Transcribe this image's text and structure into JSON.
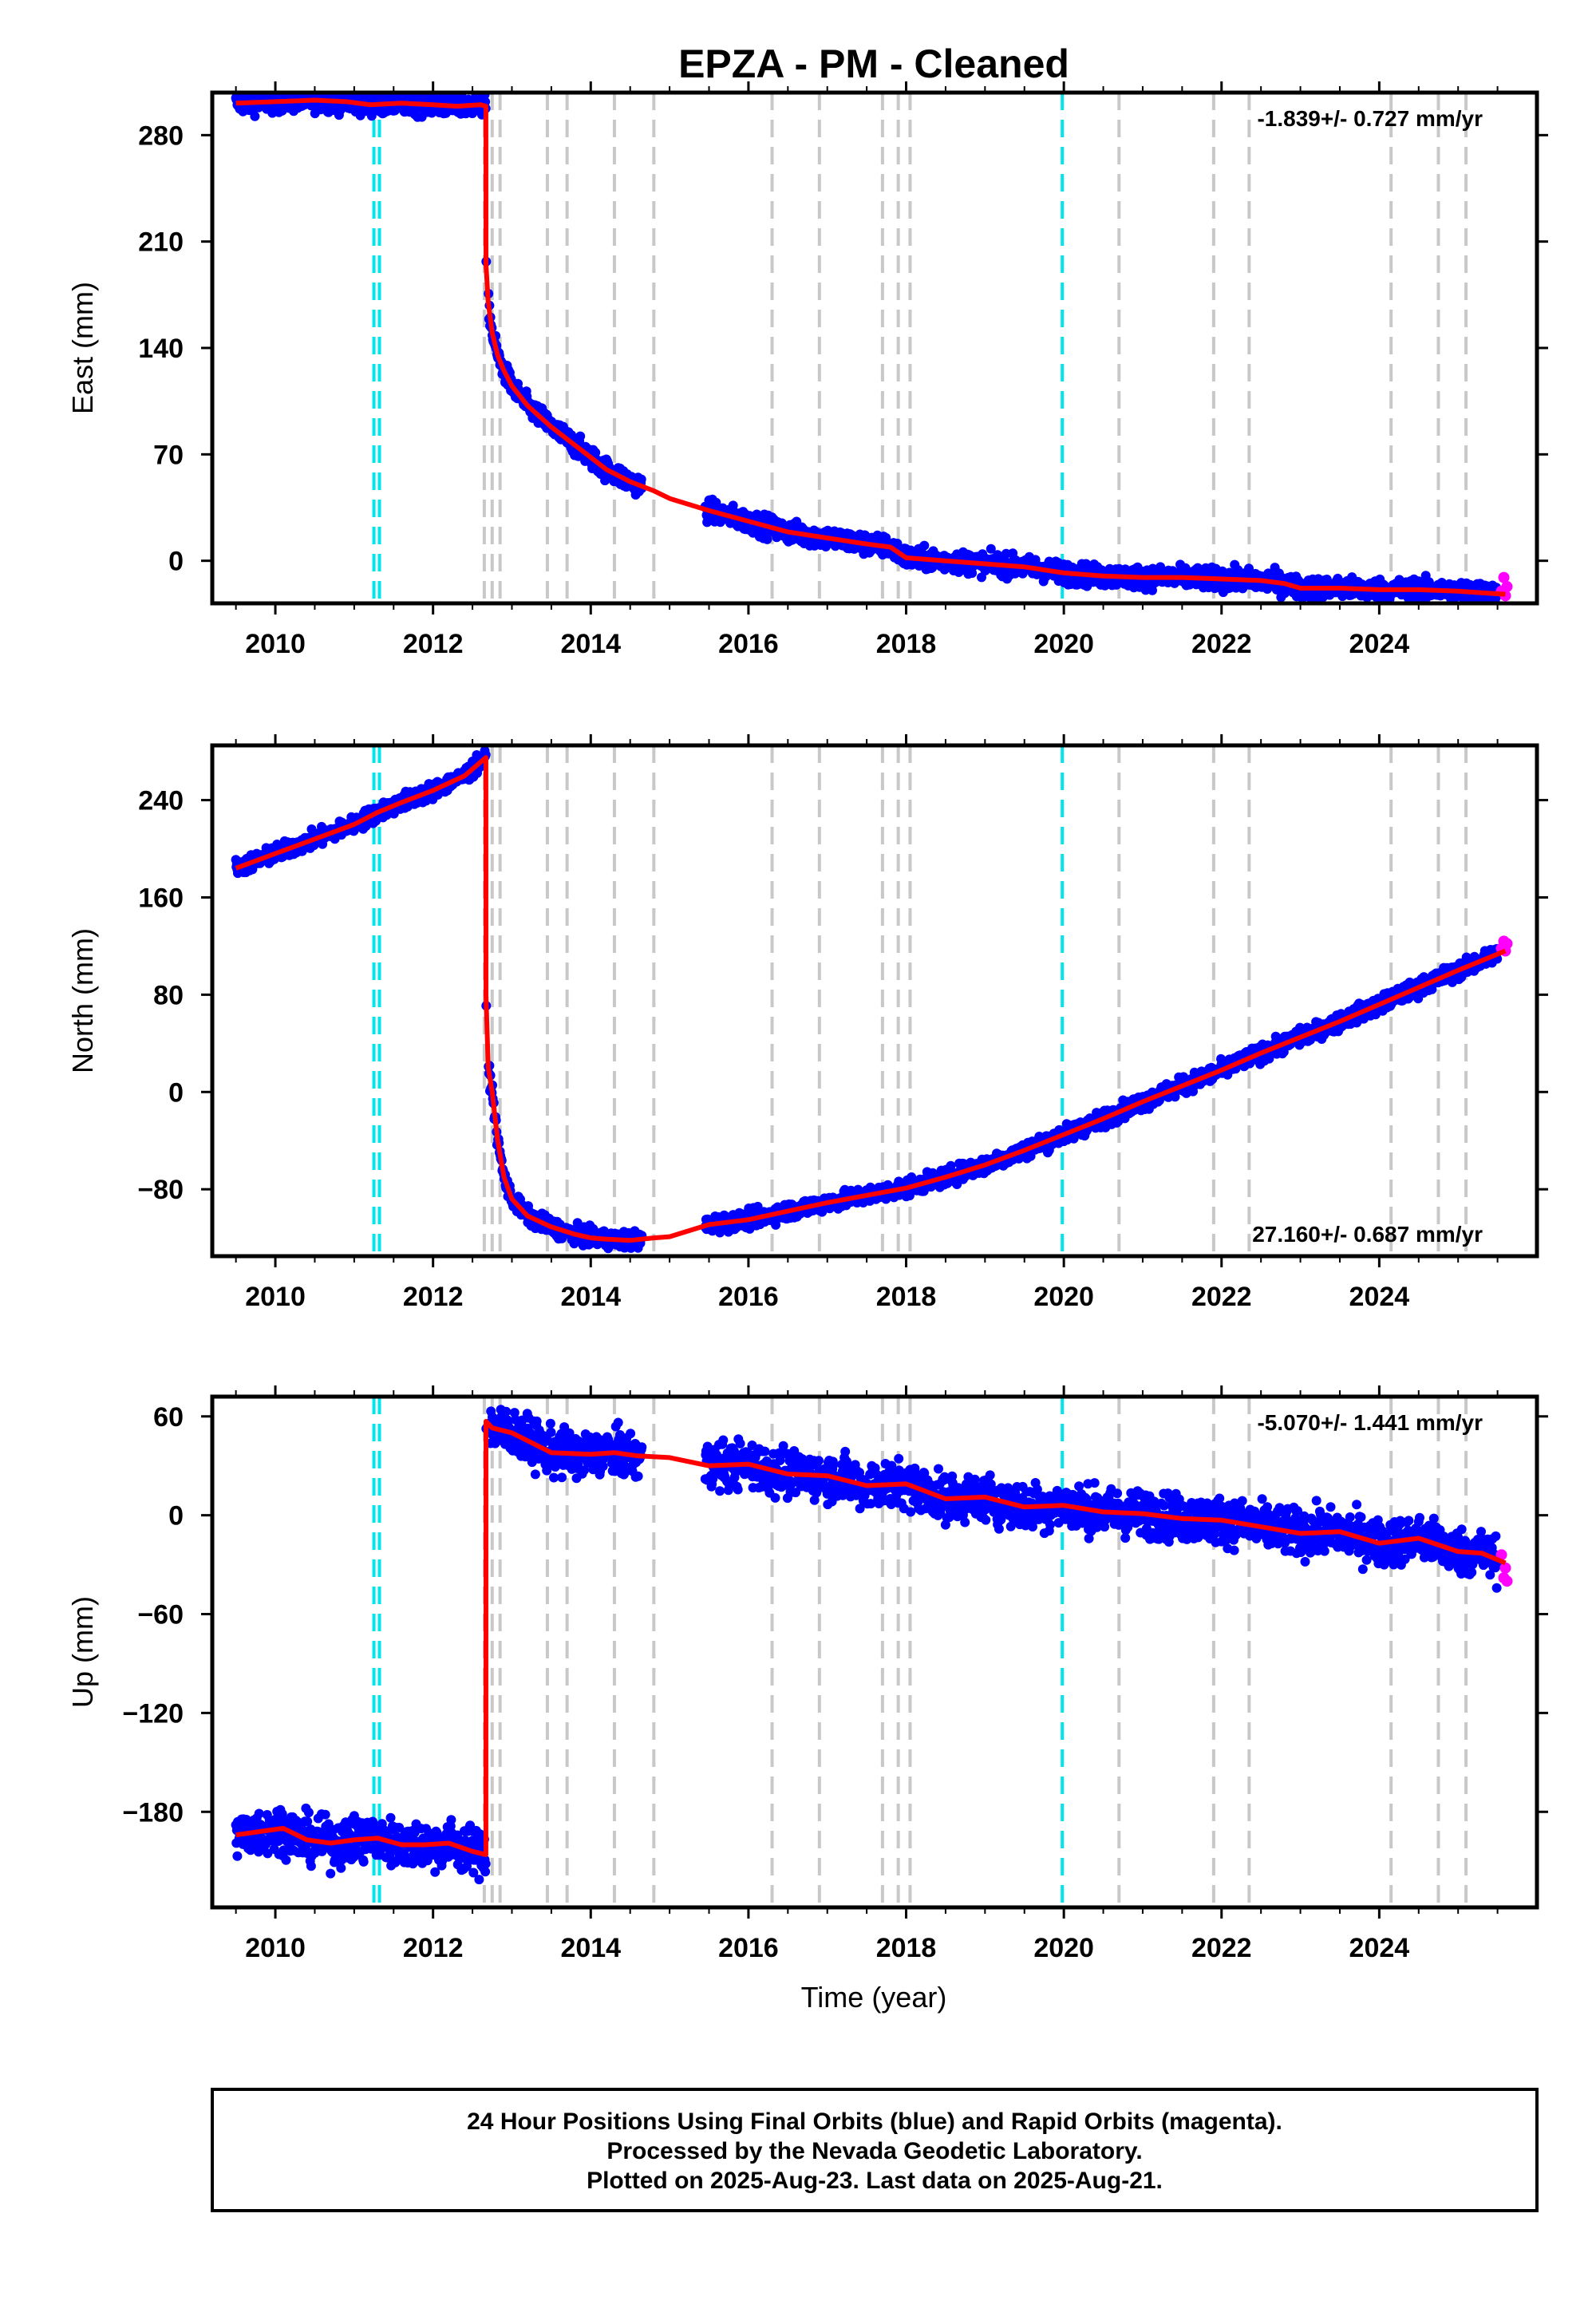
{
  "title": "EPZA  - PM - Cleaned",
  "xlabel": "Time (year)",
  "footer": {
    "line1": "24 Hour Positions Using Final Orbits (blue) and Rapid Orbits (magenta).",
    "line2": "Processed by the Nevada Geodetic Laboratory.",
    "line3": "Plotted on 2025-Aug-23. Last data on 2025-Aug-21."
  },
  "colors": {
    "final_orbits": "#0000ff",
    "rapid_orbits": "#ff00ff",
    "model": "#ff0000",
    "equipment_change": "#c8c8c8",
    "earthquake": "#00e5ee"
  },
  "chart_data": [
    {
      "type": "scatter",
      "name": "east",
      "ylabel": "East (mm)",
      "rate": "-1.839+/- 0.727 mm/yr",
      "rate_position": "top-right",
      "xlim": [
        2009.2,
        2026.0
      ],
      "ylim": [
        -28,
        308
      ],
      "xticks": [
        2010,
        2012,
        2014,
        2016,
        2018,
        2020,
        2022,
        2024
      ],
      "yticks": [
        280,
        210,
        140,
        70,
        0
      ],
      "noise": 3.5,
      "model": {
        "x": [
          2009.5,
          2010.0,
          2010.5,
          2010.9,
          2011.2,
          2011.6,
          2012.0,
          2012.3,
          2012.6,
          2012.67,
          2012.671,
          2012.7,
          2012.75,
          2012.82,
          2012.9,
          2013.0,
          2013.2,
          2013.5,
          2013.8,
          2014.0,
          2014.2,
          2014.5,
          2014.8,
          2015.0,
          2015.5,
          2016.0,
          2016.5,
          2017.0,
          2017.5,
          2017.8,
          2018.0,
          2018.5,
          2019.0,
          2019.5,
          2020.0,
          2020.5,
          2021.0,
          2021.5,
          2022.0,
          2022.5,
          2022.8,
          2023.0,
          2023.5,
          2024.0,
          2024.5,
          2025.0,
          2025.3,
          2025.6
        ],
        "y": [
          301,
          302,
          303,
          302,
          300,
          301,
          300,
          299,
          300,
          299,
          195,
          170,
          150,
          135,
          125,
          115,
          102,
          88,
          76,
          68,
          60,
          52,
          46,
          41,
          33,
          26,
          19,
          15,
          11,
          9,
          2,
          0,
          -2,
          -4,
          -8,
          -10,
          -11,
          -11,
          -12,
          -13,
          -15,
          -18,
          -18,
          -19,
          -19,
          -20,
          -21,
          -22
        ]
      },
      "gaps": [
        [
          2014.65,
          2015.45
        ],
        [
          2012.68,
          2012.7
        ]
      ],
      "rapid": {
        "x": [
          2025.55,
          2025.58,
          2025.6,
          2025.62
        ],
        "y": [
          -20,
          -11,
          -23,
          -17
        ]
      },
      "equipment_changes": [
        2012.65,
        2012.75,
        2012.85,
        2013.45,
        2013.7,
        2014.3,
        2014.8,
        2016.3,
        2016.9,
        2017.7,
        2017.9,
        2018.05,
        2020.7,
        2021.9,
        2022.35,
        2024.15,
        2024.75,
        2025.1
      ],
      "earthquakes": [
        2011.25,
        2011.32,
        2019.98
      ]
    },
    {
      "type": "scatter",
      "name": "north",
      "ylabel": "North (mm)",
      "rate": "27.160+/- 0.687 mm/yr",
      "rate_position": "bottom-right",
      "xlim": [
        2009.2,
        2026.0
      ],
      "ylim": [
        -135,
        285
      ],
      "xticks": [
        2010,
        2012,
        2014,
        2016,
        2018,
        2020,
        2022,
        2024
      ],
      "yticks": [
        240,
        160,
        80,
        0,
        -80
      ],
      "noise": 3.5,
      "model": {
        "x": [
          2009.5,
          2010.0,
          2010.5,
          2011.0,
          2011.3,
          2011.6,
          2012.0,
          2012.4,
          2012.67,
          2012.671,
          2012.7,
          2012.75,
          2012.82,
          2012.9,
          2013.0,
          2013.2,
          2013.5,
          2013.8,
          2014.0,
          2014.2,
          2014.5,
          2014.8,
          2015.0,
          2015.5,
          2016.0,
          2016.5,
          2017.0,
          2017.5,
          2018.0,
          2018.5,
          2019.0,
          2019.5,
          2020.0,
          2020.5,
          2021.0,
          2021.5,
          2022.0,
          2022.5,
          2023.0,
          2023.5,
          2024.0,
          2024.5,
          2025.0,
          2025.3,
          2025.6
        ],
        "y": [
          184,
          196,
          208,
          220,
          230,
          238,
          248,
          260,
          275,
          80,
          20,
          0,
          -40,
          -70,
          -88,
          -102,
          -111,
          -117,
          -120,
          -121,
          -122,
          -120,
          -119,
          -109,
          -105,
          -98,
          -91,
          -85,
          -79,
          -70,
          -60,
          -48,
          -35,
          -22,
          -8,
          5,
          18,
          32,
          45,
          58,
          72,
          86,
          100,
          108,
          116
        ]
      },
      "gaps": [
        [
          2014.65,
          2015.45
        ],
        [
          2012.68,
          2012.7
        ]
      ],
      "rapid": {
        "x": [
          2025.55,
          2025.58,
          2025.6,
          2025.62
        ],
        "y": [
          118,
          124,
          116,
          122
        ]
      },
      "equipment_changes": [
        2012.65,
        2012.75,
        2012.85,
        2013.45,
        2013.7,
        2014.3,
        2014.8,
        2016.3,
        2016.9,
        2017.7,
        2017.9,
        2018.05,
        2020.7,
        2021.9,
        2022.35,
        2024.15,
        2024.75,
        2025.1
      ],
      "earthquakes": [
        2011.25,
        2011.32,
        2019.98
      ]
    },
    {
      "type": "scatter",
      "name": "up",
      "ylabel": "Up (mm)",
      "rate": "-5.070+/- 1.441 mm/yr",
      "rate_position": "top-right",
      "xlim": [
        2009.2,
        2026.0
      ],
      "ylim": [
        -238,
        72
      ],
      "xticks": [
        2010,
        2012,
        2014,
        2016,
        2018,
        2020,
        2022,
        2024
      ],
      "yticks": [
        60,
        0,
        -60,
        -120,
        -180
      ],
      "noise": 7,
      "model": {
        "x": [
          2009.5,
          2009.8,
          2010.1,
          2010.4,
          2010.7,
          2011.0,
          2011.3,
          2011.6,
          2011.9,
          2012.2,
          2012.5,
          2012.67,
          2012.671,
          2012.75,
          2013.0,
          2013.5,
          2014.0,
          2014.3,
          2014.6,
          2015.0,
          2015.5,
          2016.0,
          2016.5,
          2017.0,
          2017.5,
          2018.0,
          2018.5,
          2019.0,
          2019.5,
          2020.0,
          2020.5,
          2021.0,
          2021.5,
          2022.0,
          2022.5,
          2023.0,
          2023.5,
          2024.0,
          2024.5,
          2025.0,
          2025.3,
          2025.6
        ],
        "y": [
          -194,
          -192,
          -190,
          -197,
          -199,
          -197,
          -196,
          -200,
          -200,
          -199,
          -204,
          -206,
          57,
          53,
          50,
          38,
          37,
          38,
          36,
          35,
          30,
          31,
          25,
          24,
          18,
          19,
          10,
          11,
          5,
          6,
          2,
          1,
          -2,
          -3,
          -7,
          -11,
          -10,
          -17,
          -14,
          -22,
          -23,
          -29
        ]
      },
      "gaps": [
        [
          2014.65,
          2015.45
        ],
        [
          2012.68,
          2012.7
        ]
      ],
      "rapid": {
        "x": [
          2025.55,
          2025.58,
          2025.6,
          2025.62
        ],
        "y": [
          -24,
          -38,
          -32,
          -40
        ]
      },
      "equipment_changes": [
        2012.65,
        2012.75,
        2012.85,
        2013.45,
        2013.7,
        2014.3,
        2014.8,
        2016.3,
        2016.9,
        2017.7,
        2017.9,
        2018.05,
        2020.7,
        2021.9,
        2022.35,
        2024.15,
        2024.75,
        2025.1
      ],
      "earthquakes": [
        2011.25,
        2011.32,
        2019.98
      ]
    }
  ]
}
